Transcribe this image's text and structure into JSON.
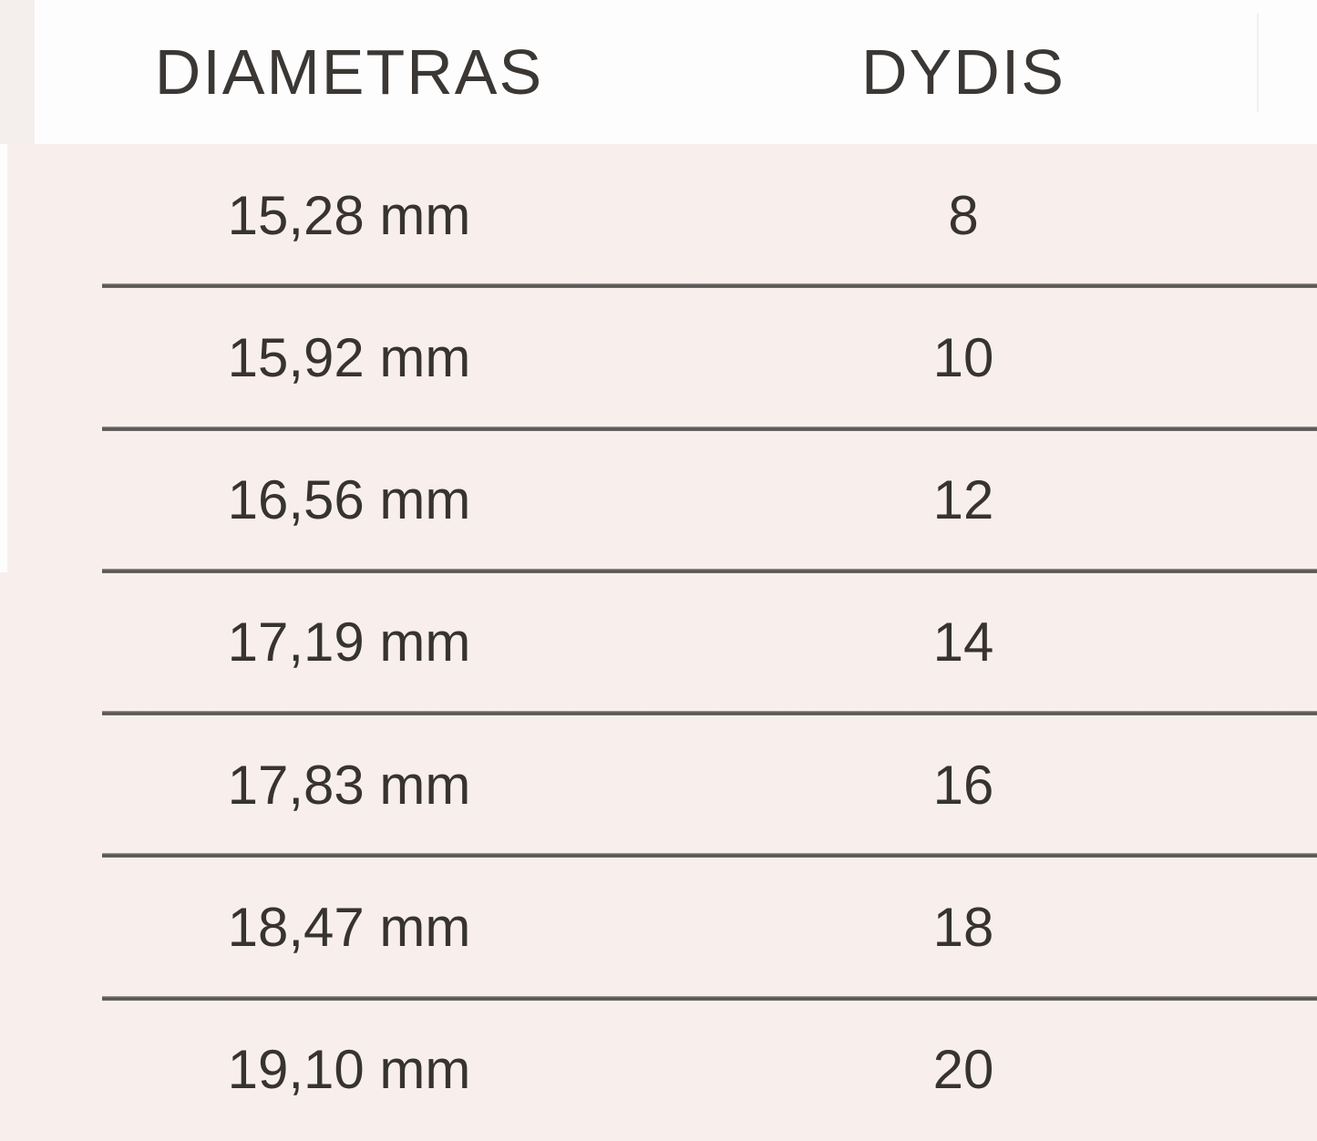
{
  "header": {
    "diameter_label": "DIAMETRAS",
    "size_label": "DYDIS"
  },
  "rows": [
    {
      "diameter": "15,28 mm",
      "size": "8"
    },
    {
      "diameter": "15,92 mm",
      "size": "10"
    },
    {
      "diameter": "16,56 mm",
      "size": "12"
    },
    {
      "diameter": "17,19 mm",
      "size": "14"
    },
    {
      "diameter": "17,83 mm",
      "size": "16"
    },
    {
      "diameter": "18,47 mm",
      "size": "18"
    },
    {
      "diameter": "19,10 mm",
      "size": "20"
    }
  ],
  "colors": {
    "body_background": "#f8efec",
    "header_background": "#fdfdfd",
    "text": "#37332f",
    "separator_line": "#5f5c5a"
  }
}
